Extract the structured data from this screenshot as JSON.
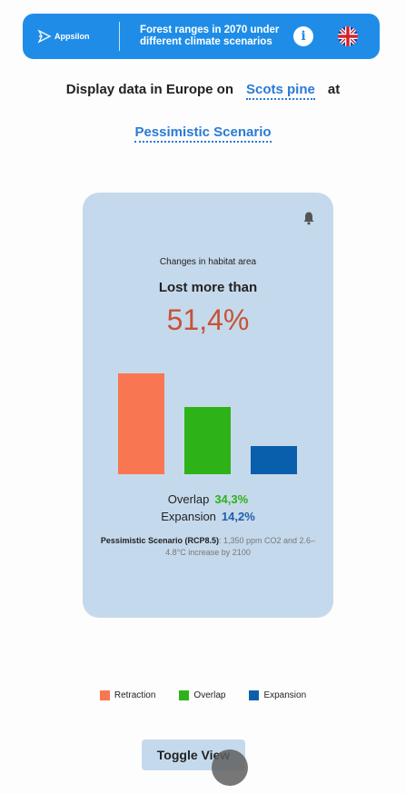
{
  "header": {
    "logo_text": "Appsilon",
    "title": "Forest ranges in 2070 under different climate scenarios",
    "info_icon": "info-icon",
    "language_icon": "uk-flag-icon"
  },
  "controls": {
    "display_label": "Display data in Europe on",
    "species": "Scots pine",
    "at_label": "at",
    "scenario": "Pessimistic Scenario"
  },
  "card": {
    "subtitle": "Changes in habitat area",
    "headline": "Lost more than",
    "percent": "51,4%",
    "overlap_label": "Overlap",
    "overlap_value": "34,3%",
    "expansion_label": "Expansion",
    "expansion_value": "14,2%",
    "scenario_name": "Pessimistic Scenario (RCP8.5)",
    "scenario_desc": ": 1,350 ppm CO2 and 2.6–4.8°C increase by 2100"
  },
  "chart_data": {
    "type": "bar",
    "categories": [
      "Retraction",
      "Overlap",
      "Expansion"
    ],
    "values": [
      51.4,
      34.3,
      14.2
    ],
    "colors": [
      "#f87752",
      "#2db317",
      "#0a5fad"
    ]
  },
  "legend": [
    {
      "label": "Retraction",
      "color": "#f87752"
    },
    {
      "label": "Overlap",
      "color": "#2db317"
    },
    {
      "label": "Expansion",
      "color": "#0a5fad"
    }
  ],
  "toggle_label": "Toggle View",
  "colors": {
    "accent": "#1f8de8",
    "link": "#2a7ad6",
    "card_bg": "#c5d9ec",
    "lost": "#c65236",
    "overlap": "#2db317",
    "expansion": "#1f5fa8"
  }
}
